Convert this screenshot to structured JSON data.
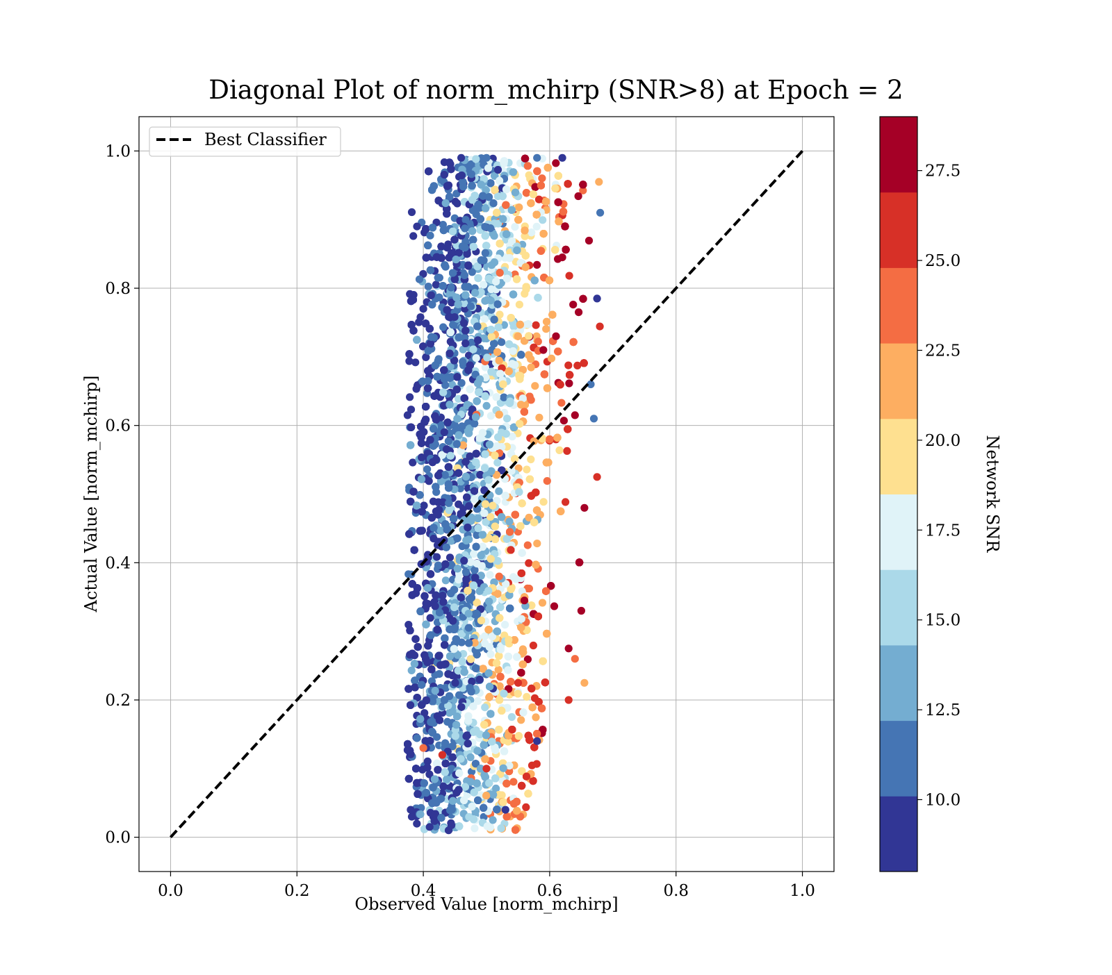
{
  "chart_data": {
    "type": "scatter",
    "title": "Diagonal Plot of norm_mchirp (SNR>8) at Epoch = 2",
    "xlabel": "Observed Value [norm_mchirp]",
    "ylabel": "Actual Value [norm_mchirp]",
    "xlim": [
      -0.05,
      1.05
    ],
    "ylim": [
      -0.05,
      1.05
    ],
    "xticks": [
      "0.0",
      "0.2",
      "0.4",
      "0.6",
      "0.8",
      "1.0"
    ],
    "yticks": [
      "0.0",
      "0.2",
      "0.4",
      "0.6",
      "0.8",
      "1.0"
    ],
    "grid": true,
    "legend": {
      "position": "top-left",
      "entries": [
        {
          "label": "Best Classifier",
          "style": "black dashed line"
        }
      ]
    },
    "reference_line": {
      "name": "Best Classifier",
      "x": [
        0.0,
        1.0
      ],
      "y": [
        0.0,
        1.0
      ],
      "color": "#000000",
      "style": "dashed"
    },
    "colorbar": {
      "label": "Network SNR",
      "range": [
        8,
        29
      ],
      "tick_values": [
        10.0,
        12.5,
        15.0,
        17.5,
        20.0,
        22.5,
        25.0,
        27.5
      ],
      "tick_labels": [
        "10.0",
        "12.5",
        "15.0",
        "17.5",
        "20.0",
        "22.5",
        "25.0",
        "27.5"
      ],
      "colormap": "RdYlBu_r",
      "bands": [
        "#313695",
        "#4575b4",
        "#74add1",
        "#abd9e9",
        "#e0f3f8",
        "#fee090",
        "#fdae61",
        "#f46d43",
        "#d73027",
        "#a50026"
      ]
    },
    "series": [
      {
        "color_by": "Network SNR",
        "summary": "approximately 10000 points; x spans 0.37-0.68, y spans 0.01-0.99; low-SNR points (~8-12) concentrated at x≈0.40-0.46, mid-SNR (~15-19) at x≈0.46-0.55, high-SNR (~20-29) at x≈0.53-0.66",
        "sample_points": [
          {
            "x": 0.375,
            "y": 0.615,
            "snr": 9.0
          },
          {
            "x": 0.44,
            "y": 0.95,
            "snr": 9.5
          },
          {
            "x": 0.46,
            "y": 0.99,
            "snr": 9.0
          },
          {
            "x": 0.5,
            "y": 0.99,
            "snr": 11.0
          },
          {
            "x": 0.58,
            "y": 0.99,
            "snr": 12.0
          },
          {
            "x": 0.62,
            "y": 0.99,
            "snr": 9.5
          },
          {
            "x": 0.678,
            "y": 0.955,
            "snr": 21.5
          },
          {
            "x": 0.68,
            "y": 0.91,
            "snr": 11.0
          },
          {
            "x": 0.675,
            "y": 0.785,
            "snr": 9.5
          },
          {
            "x": 0.64,
            "y": 0.615,
            "snr": 27.5
          },
          {
            "x": 0.655,
            "y": 0.48,
            "snr": 27.0
          },
          {
            "x": 0.675,
            "y": 0.525,
            "snr": 25.0
          },
          {
            "x": 0.62,
            "y": 0.845,
            "snr": 27.5
          },
          {
            "x": 0.61,
            "y": 0.73,
            "snr": 28.0
          },
          {
            "x": 0.59,
            "y": 0.71,
            "snr": 28.0
          },
          {
            "x": 0.56,
            "y": 0.345,
            "snr": 27.5
          },
          {
            "x": 0.65,
            "y": 0.33,
            "snr": 27.5
          },
          {
            "x": 0.63,
            "y": 0.2,
            "snr": 25.0
          },
          {
            "x": 0.655,
            "y": 0.225,
            "snr": 21.0
          },
          {
            "x": 0.52,
            "y": 0.38,
            "snr": 24.0
          },
          {
            "x": 0.4,
            "y": 0.13,
            "snr": 24.0
          },
          {
            "x": 0.43,
            "y": 0.12,
            "snr": 25.0
          },
          {
            "x": 0.5,
            "y": 0.1,
            "snr": 25.0
          },
          {
            "x": 0.44,
            "y": 0.01,
            "snr": 9.0
          },
          {
            "x": 0.41,
            "y": 0.015,
            "snr": 10.0
          },
          {
            "x": 0.38,
            "y": 0.04,
            "snr": 9.0
          },
          {
            "x": 0.58,
            "y": 0.14,
            "snr": 9.5
          },
          {
            "x": 0.53,
            "y": 0.04,
            "snr": 9.0
          },
          {
            "x": 0.51,
            "y": 0.025,
            "snr": 14.0
          },
          {
            "x": 0.55,
            "y": 0.225,
            "snr": 25.0
          },
          {
            "x": 0.64,
            "y": 0.26,
            "snr": 23.0
          },
          {
            "x": 0.63,
            "y": 0.275,
            "snr": 28.0
          },
          {
            "x": 0.39,
            "y": 0.89,
            "snr": 9.5
          },
          {
            "x": 0.4,
            "y": 0.77,
            "snr": 9.0
          },
          {
            "x": 0.665,
            "y": 0.66,
            "snr": 11.5
          },
          {
            "x": 0.67,
            "y": 0.61,
            "snr": 11.0
          }
        ]
      }
    ]
  }
}
